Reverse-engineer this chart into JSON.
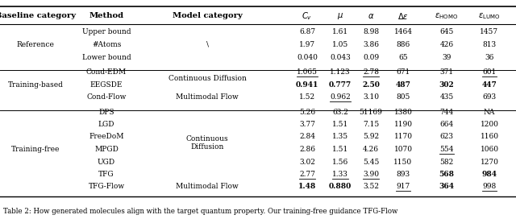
{
  "caption": "Table 2: How generated molecules align with the target quantum property. Our training-free guidance TFG-Flow",
  "rows": [
    {
      "baseline": "Reference",
      "methods": [
        {
          "method": "Upper bound",
          "Cv": "6.87",
          "mu": "1.61",
          "alpha": "8.98",
          "de": "1464",
          "homo": "645",
          "lumo": "1457",
          "Cv_u": false,
          "mu_u": false,
          "alpha_u": false,
          "de_u": false,
          "homo_u": false,
          "lumo_u": false,
          "Cv_b": false,
          "mu_b": false,
          "alpha_b": false,
          "de_b": false,
          "homo_b": false,
          "lumo_b": false
        },
        {
          "method": "#Atoms",
          "Cv": "1.97",
          "mu": "1.05",
          "alpha": "3.86",
          "de": "886",
          "homo": "426",
          "lumo": "813",
          "Cv_u": false,
          "mu_u": false,
          "alpha_u": false,
          "de_u": false,
          "homo_u": false,
          "lumo_u": false,
          "Cv_b": false,
          "mu_b": false,
          "alpha_b": false,
          "de_b": false,
          "homo_b": false,
          "lumo_b": false
        },
        {
          "method": "Lower bound",
          "Cv": "0.040",
          "mu": "0.043",
          "alpha": "0.09",
          "de": "65",
          "homo": "39",
          "lumo": "36",
          "Cv_u": false,
          "mu_u": false,
          "alpha_u": false,
          "de_u": false,
          "homo_u": false,
          "lumo_u": false,
          "Cv_b": false,
          "mu_b": false,
          "alpha_b": false,
          "de_b": false,
          "homo_b": false,
          "lumo_b": false
        }
      ]
    },
    {
      "baseline": "Training-based",
      "methods": [
        {
          "method": "Cond-EDM",
          "Cv": "1.065",
          "mu": "1.123",
          "alpha": "2.78",
          "de": "671",
          "homo": "371",
          "lumo": "601",
          "Cv_u": true,
          "mu_u": false,
          "alpha_u": true,
          "de_u": false,
          "homo_u": false,
          "lumo_u": true,
          "Cv_b": false,
          "mu_b": false,
          "alpha_b": false,
          "de_b": false,
          "homo_b": false,
          "lumo_b": false
        },
        {
          "method": "EEGSDE",
          "Cv": "0.941",
          "mu": "0.777",
          "alpha": "2.50",
          "de": "487",
          "homo": "302",
          "lumo": "447",
          "Cv_u": false,
          "mu_u": false,
          "alpha_u": false,
          "de_u": false,
          "homo_u": false,
          "lumo_u": false,
          "Cv_b": true,
          "mu_b": true,
          "alpha_b": true,
          "de_b": true,
          "homo_b": true,
          "lumo_b": true
        },
        {
          "method": "Cond-Flow",
          "Cv": "1.52",
          "mu": "0.962",
          "alpha": "3.10",
          "de": "805",
          "homo": "435",
          "lumo": "693",
          "Cv_u": false,
          "mu_u": true,
          "alpha_u": false,
          "de_u": false,
          "homo_u": false,
          "lumo_u": false,
          "Cv_b": false,
          "mu_b": false,
          "alpha_b": false,
          "de_b": false,
          "homo_b": false,
          "lumo_b": false
        }
      ]
    },
    {
      "baseline": "Training-free",
      "methods": [
        {
          "method": "DPS",
          "Cv": "5.26",
          "mu": "63.2",
          "alpha": "51169",
          "de": "1380",
          "homo": "744",
          "lumo": "NA",
          "Cv_u": false,
          "mu_u": false,
          "alpha_u": false,
          "de_u": false,
          "homo_u": false,
          "lumo_u": false,
          "Cv_b": false,
          "mu_b": false,
          "alpha_b": false,
          "de_b": false,
          "homo_b": false,
          "lumo_b": false
        },
        {
          "method": "LGD",
          "Cv": "3.77",
          "mu": "1.51",
          "alpha": "7.15",
          "de": "1190",
          "homo": "664",
          "lumo": "1200",
          "Cv_u": false,
          "mu_u": false,
          "alpha_u": false,
          "de_u": false,
          "homo_u": false,
          "lumo_u": false,
          "Cv_b": false,
          "mu_b": false,
          "alpha_b": false,
          "de_b": false,
          "homo_b": false,
          "lumo_b": false
        },
        {
          "method": "FreeDoM",
          "Cv": "2.84",
          "mu": "1.35",
          "alpha": "5.92",
          "de": "1170",
          "homo": "623",
          "lumo": "1160",
          "Cv_u": false,
          "mu_u": false,
          "alpha_u": false,
          "de_u": false,
          "homo_u": false,
          "lumo_u": false,
          "Cv_b": false,
          "mu_b": false,
          "alpha_b": false,
          "de_b": false,
          "homo_b": false,
          "lumo_b": false
        },
        {
          "method": "MPGD",
          "Cv": "2.86",
          "mu": "1.51",
          "alpha": "4.26",
          "de": "1070",
          "homo": "554",
          "lumo": "1060",
          "Cv_u": false,
          "mu_u": false,
          "alpha_u": false,
          "de_u": false,
          "homo_u": true,
          "lumo_u": false,
          "Cv_b": false,
          "mu_b": false,
          "alpha_b": false,
          "de_b": false,
          "homo_b": false,
          "lumo_b": false
        },
        {
          "method": "UGD",
          "Cv": "3.02",
          "mu": "1.56",
          "alpha": "5.45",
          "de": "1150",
          "homo": "582",
          "lumo": "1270",
          "Cv_u": false,
          "mu_u": false,
          "alpha_u": false,
          "de_u": false,
          "homo_u": false,
          "lumo_u": false,
          "Cv_b": false,
          "mu_b": false,
          "alpha_b": false,
          "de_b": false,
          "homo_b": false,
          "lumo_b": false
        },
        {
          "method": "TFG",
          "Cv": "2.77",
          "mu": "1.33",
          "alpha": "3.90",
          "de": "893",
          "homo": "568",
          "lumo": "984",
          "Cv_u": true,
          "mu_u": true,
          "alpha_u": true,
          "de_u": false,
          "homo_u": false,
          "lumo_u": false,
          "Cv_b": false,
          "mu_b": false,
          "alpha_b": false,
          "de_b": false,
          "homo_b": true,
          "lumo_b": true
        },
        {
          "method": "TFG-Flow",
          "Cv": "1.48",
          "mu": "0.880",
          "alpha": "3.52",
          "de": "917",
          "homo": "364",
          "lumo": "998",
          "Cv_u": false,
          "mu_u": false,
          "alpha_u": false,
          "de_u": true,
          "homo_u": false,
          "lumo_u": true,
          "Cv_b": true,
          "mu_b": true,
          "alpha_b": false,
          "de_b": false,
          "homo_b": true,
          "lumo_b": false
        }
      ]
    }
  ],
  "model_cats": {
    "Reference": [
      [
        "\\",
        0,
        2
      ]
    ],
    "Training-based": [
      [
        "Continuous Diffusion",
        0,
        1
      ],
      [
        "Multimodal Flow",
        2,
        2
      ]
    ],
    "Training-free": [
      [
        "Continuous\nDiffusion",
        2,
        3
      ],
      [
        "Multimodal Flow",
        6,
        6
      ]
    ]
  }
}
